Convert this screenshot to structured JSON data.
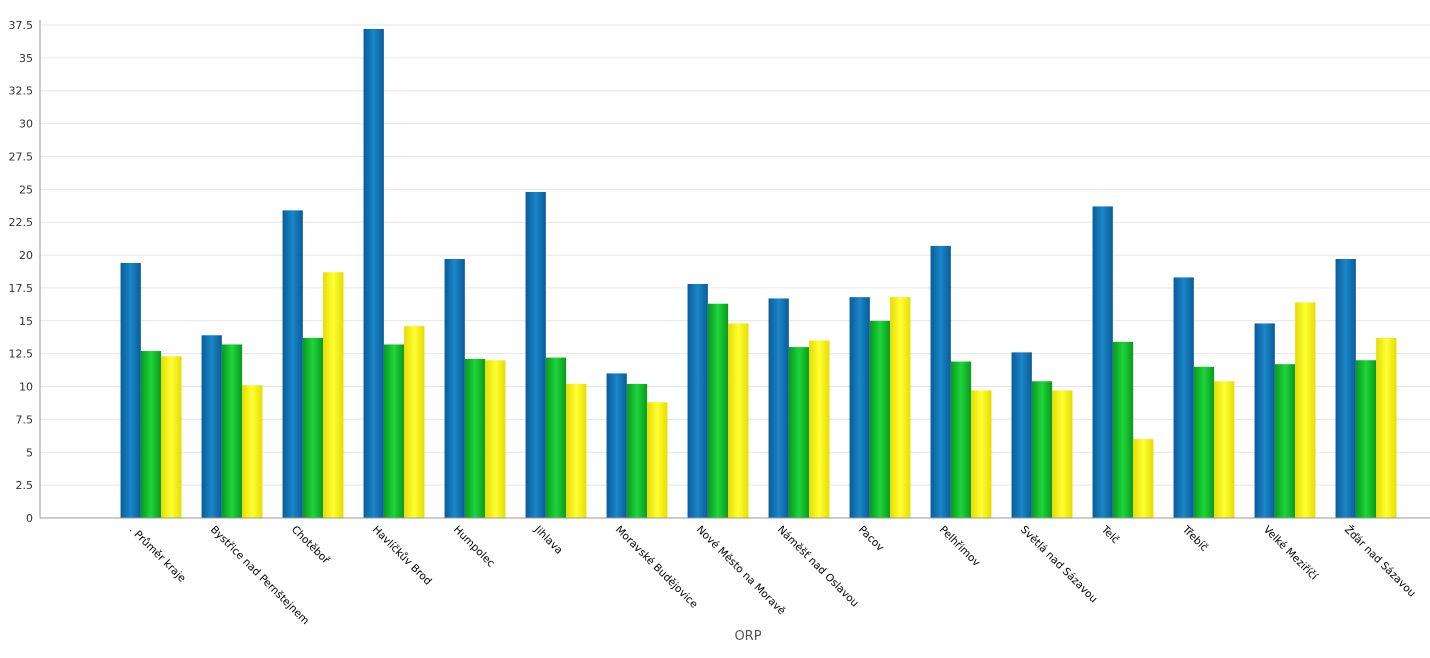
{
  "chart_data": {
    "type": "bar",
    "xlabel": "ORP",
    "ylabel": "",
    "ylim": [
      0,
      37.5
    ],
    "yticks": [
      0,
      2.5,
      5,
      7.5,
      10,
      12.5,
      15,
      17.5,
      20,
      22.5,
      25,
      27.5,
      30,
      32.5,
      35,
      37.5
    ],
    "ytick_labels": [
      "0",
      "2.5",
      "5",
      "7.5",
      "10",
      "12.5",
      "15",
      "17.5",
      "20",
      "22.5",
      "25",
      "27.5",
      "30",
      "32.5",
      "35",
      "37.5"
    ],
    "grid": true,
    "legend": "none",
    "categories": [
      ". Průměr kraje",
      "Bystřice nad Pernštejnem",
      "Chotěboř",
      "Havlíčkův Brod",
      "Humpolec",
      "Jihlava",
      "Moravské Budějovice",
      "Nové Město na Moravě",
      "Náměšť nad Oslavou",
      "Pacov",
      "Pelhřimov",
      "Světlá nad Sázavou",
      "Telč",
      "Třebíč",
      "Velké Meziříčí",
      "Žďár nad Sázavou"
    ],
    "series": [
      {
        "color": "#0f6fb0",
        "values": [
          19.4,
          13.9,
          23.4,
          37.2,
          19.7,
          24.8,
          11.0,
          17.8,
          16.7,
          16.8,
          20.7,
          12.6,
          23.7,
          18.3,
          14.8,
          19.7
        ]
      },
      {
        "color": "#11b829",
        "values": [
          12.7,
          13.2,
          13.7,
          13.2,
          12.1,
          12.2,
          10.2,
          16.3,
          13.0,
          15.0,
          11.9,
          10.4,
          13.4,
          11.5,
          11.7,
          12.0
        ]
      },
      {
        "color": "#f3ee00",
        "values": [
          12.3,
          10.1,
          18.7,
          14.6,
          12.0,
          10.2,
          8.8,
          14.8,
          13.5,
          16.8,
          9.7,
          9.7,
          6.0,
          10.4,
          16.4,
          13.7
        ]
      }
    ]
  }
}
